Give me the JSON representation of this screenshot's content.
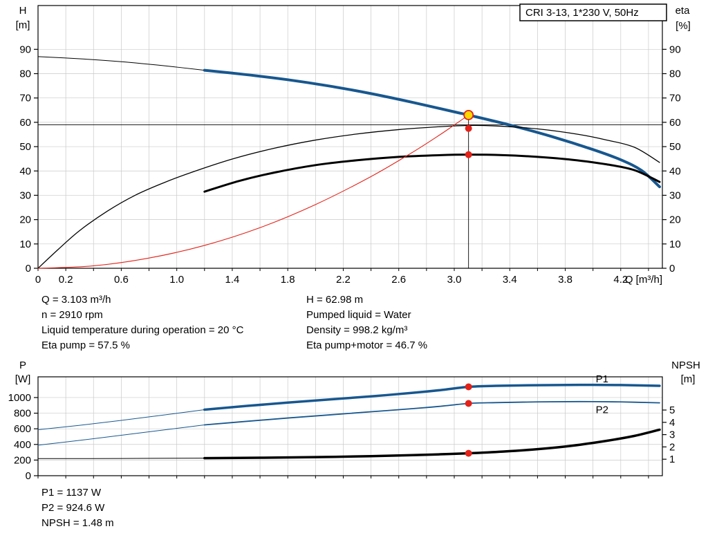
{
  "title_box": "CRI 3-13, 1*230 V, 50Hz",
  "colors": {
    "blue": "#17578f",
    "red": "#e32219",
    "yellow": "#ffd800",
    "black": "#000000",
    "grid": "#c9c9c9"
  },
  "info_top": {
    "left": [
      "Q = 3.103 m³/h",
      "n = 2910 rpm",
      "Liquid temperature during operation = 20 °C",
      "Eta pump = 57.5 %"
    ],
    "right": [
      "H = 62.98 m",
      "Pumped liquid = Water",
      "Density = 998.2 kg/m³",
      "Eta pump+motor = 46.7 %"
    ]
  },
  "info_bottom": [
    "P1 = 1137 W",
    "P2 = 924.6 W",
    "NPSH = 1.48 m"
  ],
  "chart_data": [
    {
      "type": "line",
      "name": "qh-eta-chart",
      "title": "CRI 3-13, 1*230 V, 50Hz",
      "axis_x": {
        "label": "Q [m³/h]",
        "min": 0,
        "max": 4.5,
        "tick_step": 0.2,
        "tick_labels": [
          "0",
          "0.2",
          "0.6",
          "1.0",
          "1.4",
          "1.8",
          "2.2",
          "2.6",
          "3.0",
          "3.4",
          "3.8",
          "4.2"
        ]
      },
      "axis_left": {
        "label": [
          "H",
          "[m]"
        ],
        "min": 0,
        "max": 108,
        "ticks": [
          0,
          10,
          20,
          30,
          40,
          50,
          60,
          70,
          80,
          90
        ]
      },
      "axis_right": {
        "label": [
          "eta",
          "[%]"
        ],
        "min": 0,
        "max": 108,
        "ticks": [
          0,
          10,
          20,
          30,
          40,
          50,
          60,
          70,
          80,
          90
        ]
      },
      "crosshair": {
        "q": 3.103,
        "v_top": 62.98,
        "hline": 59
      },
      "series": [
        {
          "name": "hq-curve-extension",
          "axis": "left",
          "color": "black",
          "width": 1,
          "points": [
            [
              0,
              87
            ],
            [
              0.3,
              86.1
            ],
            [
              0.6,
              84.9
            ],
            [
              0.9,
              83.3
            ],
            [
              1.2,
              81.4
            ]
          ]
        },
        {
          "name": "hq-curve",
          "axis": "left",
          "color": "blue",
          "width": 4,
          "points": [
            [
              1.2,
              81.4
            ],
            [
              1.5,
              79.6
            ],
            [
              1.8,
              77.5
            ],
            [
              2.1,
              74.9
            ],
            [
              2.4,
              71.8
            ],
            [
              2.7,
              68.2
            ],
            [
              3.0,
              64.3
            ],
            [
              3.103,
              62.98
            ],
            [
              3.4,
              58.9
            ],
            [
              3.7,
              54.2
            ],
            [
              4.0,
              48.8
            ],
            [
              4.2,
              44.6
            ],
            [
              4.35,
              40.2
            ],
            [
              4.48,
              33.5
            ]
          ]
        },
        {
          "name": "eta-pump-curve",
          "axis": "right",
          "color": "black",
          "width": 1.3,
          "points": [
            [
              0,
              0
            ],
            [
              0.15,
              8
            ],
            [
              0.3,
              15.5
            ],
            [
              0.5,
              23.5
            ],
            [
              0.7,
              30
            ],
            [
              0.9,
              35
            ],
            [
              1.1,
              39.3
            ],
            [
              1.4,
              44.9
            ],
            [
              1.7,
              49.3
            ],
            [
              2.0,
              52.7
            ],
            [
              2.3,
              55.2
            ],
            [
              2.6,
              57
            ],
            [
              2.9,
              58.2
            ],
            [
              3.1,
              58.7
            ],
            [
              3.3,
              58.5
            ],
            [
              3.6,
              57.3
            ],
            [
              3.9,
              55
            ],
            [
              4.1,
              52.7
            ],
            [
              4.3,
              49.7
            ],
            [
              4.48,
              43.5
            ]
          ]
        },
        {
          "name": "eta-pump-motor-curve",
          "axis": "right",
          "color": "black",
          "width": 3,
          "points": [
            [
              1.2,
              31.5
            ],
            [
              1.45,
              35.9
            ],
            [
              1.7,
              39.3
            ],
            [
              2.0,
              42.4
            ],
            [
              2.3,
              44.4
            ],
            [
              2.6,
              45.8
            ],
            [
              2.9,
              46.5
            ],
            [
              3.103,
              46.7
            ],
            [
              3.35,
              46.5
            ],
            [
              3.6,
              45.8
            ],
            [
              3.85,
              44.6
            ],
            [
              4.1,
              42.7
            ],
            [
              4.3,
              40.3
            ],
            [
              4.48,
              35.5
            ]
          ]
        },
        {
          "name": "system-curve",
          "axis": "left",
          "color": "red",
          "width": 1.1,
          "points": [
            [
              0,
              0
            ],
            [
              0.4,
              1.0
            ],
            [
              0.8,
              4.2
            ],
            [
              1.2,
              9.4
            ],
            [
              1.6,
              16.7
            ],
            [
              2.0,
              26.2
            ],
            [
              2.4,
              37.7
            ],
            [
              2.7,
              47.7
            ],
            [
              2.9,
              55.0
            ],
            [
              3.0,
              58.9
            ],
            [
              3.103,
              62.98
            ]
          ]
        }
      ],
      "markers": [
        {
          "name": "duty-point-qh",
          "q": 3.103,
          "v": 62.98,
          "axis": "left",
          "fill": "yellow",
          "stroke": "red",
          "r": 6.5
        },
        {
          "name": "duty-point-eta-pump",
          "q": 3.103,
          "v": 57.5,
          "axis": "right",
          "fill": "red",
          "r": 5
        },
        {
          "name": "duty-point-eta-pump-motor",
          "q": 3.103,
          "v": 46.7,
          "axis": "right",
          "fill": "red",
          "r": 5
        }
      ]
    },
    {
      "type": "line",
      "name": "power-npsh-chart",
      "axis_x": {
        "label": "",
        "min": 0,
        "max": 4.5,
        "tick_step": 0.2,
        "tick_labels": []
      },
      "axis_left": {
        "label": [
          "P",
          "[W]"
        ],
        "min": 0,
        "max": 1265,
        "ticks": [
          0,
          200,
          400,
          600,
          800,
          1000
        ]
      },
      "axis_right": {
        "label": [
          "NPSH",
          "[m]"
        ],
        "min": -0.34,
        "max": 7.7,
        "ticks": [
          1,
          2,
          3,
          4,
          5
        ]
      },
      "series": [
        {
          "name": "p1-curve-extension",
          "axis": "left",
          "color": "blue",
          "width": 1,
          "points": [
            [
              0,
              588
            ],
            [
              0.3,
              645
            ],
            [
              0.6,
              708
            ],
            [
              0.9,
              775
            ],
            [
              1.2,
              845
            ]
          ]
        },
        {
          "name": "p1-curve",
          "axis": "left",
          "color": "blue",
          "width": 3.5,
          "label": {
            "text": "P1",
            "q": 4.02,
            "v": 1195
          },
          "points": [
            [
              1.2,
              845
            ],
            [
              1.5,
              892
            ],
            [
              1.8,
              935
            ],
            [
              2.1,
              975
            ],
            [
              2.4,
              1015
            ],
            [
              2.7,
              1060
            ],
            [
              2.9,
              1095
            ],
            [
              3.103,
              1137
            ],
            [
              3.3,
              1150
            ],
            [
              3.6,
              1158
            ],
            [
              3.9,
              1162
            ],
            [
              4.2,
              1160
            ],
            [
              4.48,
              1150
            ]
          ]
        },
        {
          "name": "p2-curve-extension",
          "axis": "left",
          "color": "blue",
          "width": 1,
          "points": [
            [
              0,
              390
            ],
            [
              0.3,
              452
            ],
            [
              0.6,
              518
            ],
            [
              0.9,
              584
            ],
            [
              1.2,
              650
            ]
          ]
        },
        {
          "name": "p2-curve",
          "axis": "left",
          "color": "blue",
          "width": 1.8,
          "label": {
            "text": "P2",
            "q": 4.02,
            "v": 800
          },
          "points": [
            [
              1.2,
              650
            ],
            [
              1.5,
              695
            ],
            [
              1.8,
              738
            ],
            [
              2.1,
              778
            ],
            [
              2.4,
              818
            ],
            [
              2.7,
              858
            ],
            [
              2.9,
              888
            ],
            [
              3.103,
              924.6
            ],
            [
              3.3,
              935
            ],
            [
              3.6,
              944
            ],
            [
              3.9,
              948
            ],
            [
              4.2,
              944
            ],
            [
              4.48,
              932
            ]
          ]
        },
        {
          "name": "npsh-curve-extension",
          "axis": "right",
          "color": "black",
          "width": 1,
          "points": [
            [
              0,
              1.05
            ],
            [
              0.6,
              1.06
            ],
            [
              1.2,
              1.09
            ]
          ]
        },
        {
          "name": "npsh-curve",
          "axis": "right",
          "color": "black",
          "width": 3.5,
          "points": [
            [
              1.2,
              1.09
            ],
            [
              1.6,
              1.12
            ],
            [
              2.0,
              1.17
            ],
            [
              2.4,
              1.25
            ],
            [
              2.7,
              1.33
            ],
            [
              2.9,
              1.4
            ],
            [
              3.103,
              1.48
            ],
            [
              3.35,
              1.62
            ],
            [
              3.6,
              1.82
            ],
            [
              3.85,
              2.1
            ],
            [
              4.1,
              2.5
            ],
            [
              4.3,
              2.9
            ],
            [
              4.48,
              3.4
            ]
          ]
        }
      ],
      "markers": [
        {
          "name": "duty-point-p1",
          "q": 3.103,
          "v": 1137,
          "axis": "left",
          "fill": "red",
          "r": 5
        },
        {
          "name": "duty-point-p2",
          "q": 3.103,
          "v": 924.6,
          "axis": "left",
          "fill": "red",
          "r": 5
        },
        {
          "name": "duty-point-npsh",
          "q": 3.103,
          "v": 1.48,
          "axis": "right",
          "fill": "red",
          "r": 5
        }
      ]
    }
  ]
}
